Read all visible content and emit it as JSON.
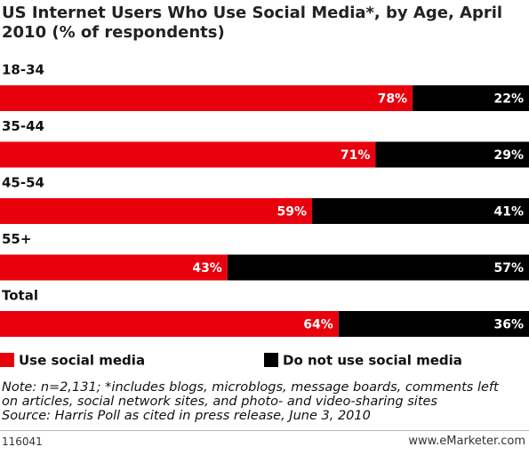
{
  "chart_data": {
    "type": "stacked_bar_horizontal",
    "title": "US Internet Users Who Use Social Media*, by Age, April 2010 (% of respondents)",
    "categories": [
      "18-34",
      "35-44",
      "45-54",
      "55+",
      "Total"
    ],
    "series": [
      {
        "name": "Use social media",
        "color": "#e8000d",
        "values": [
          78,
          71,
          59,
          43,
          64
        ],
        "value_labels": [
          "78%",
          "71%",
          "59%",
          "43%",
          "64%"
        ]
      },
      {
        "name": "Do not use social media",
        "color": "#000000",
        "values": [
          22,
          29,
          41,
          57,
          36
        ],
        "value_labels": [
          "22%",
          "29%",
          "41%",
          "57%",
          "36%"
        ]
      }
    ],
    "note": "Note: n=2,131; *includes blogs, microblogs, message boards, comments left on articles, social network sites, and photo- and video-sharing sites",
    "source": "Source: Harris Poll as cited in press release, June 3, 2010",
    "footer_left": "116041",
    "footer_right": "www.eMarketer.com"
  }
}
